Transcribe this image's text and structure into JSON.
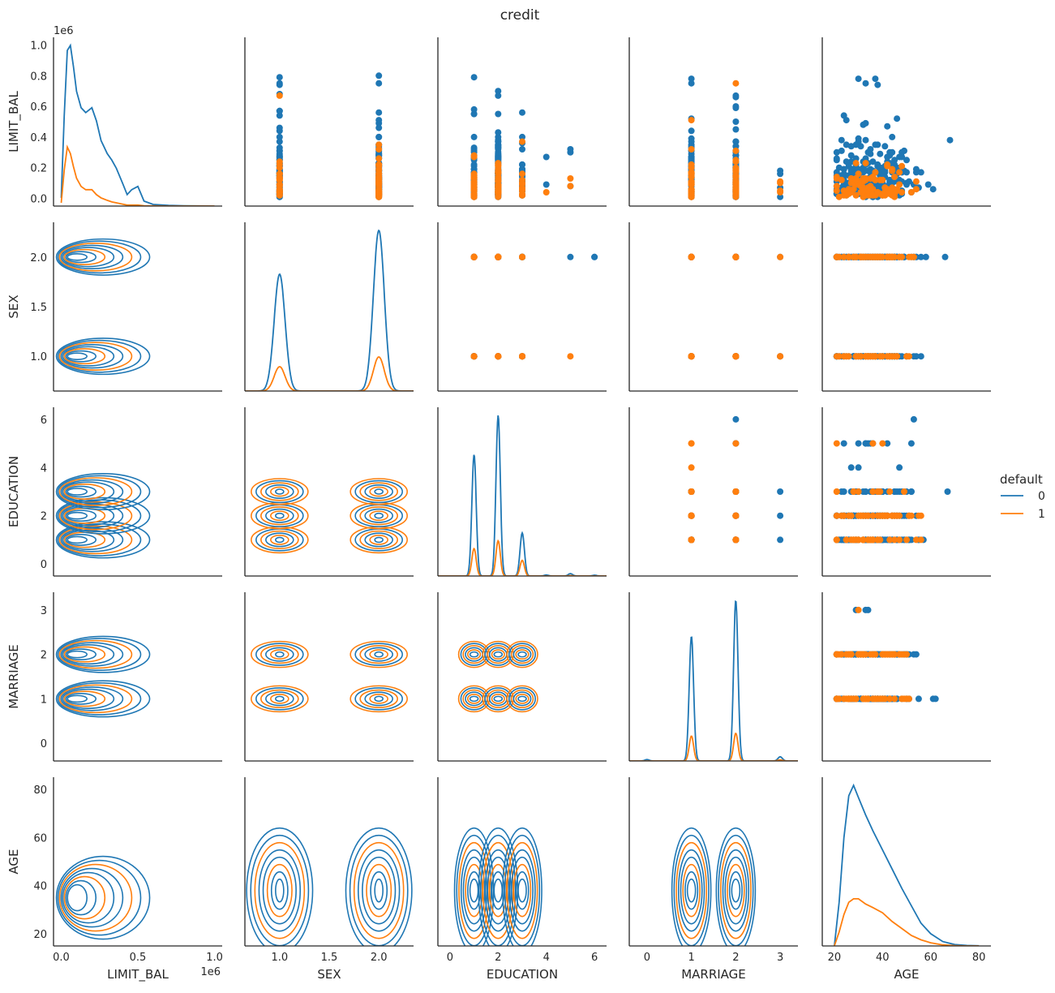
{
  "chart_data": {
    "type": "pairplot",
    "title": "credit",
    "variables": [
      "LIMIT_BAL",
      "SEX",
      "EDUCATION",
      "MARRIAGE",
      "AGE"
    ],
    "hue": {
      "name": "default",
      "levels": [
        {
          "label": "0",
          "color": "#1f77b4"
        },
        {
          "label": "1",
          "color": "#ff7f0e"
        }
      ]
    },
    "diagonal": "kde",
    "upper": "scatter",
    "lower": "kde",
    "axes": {
      "LIMIT_BAL": {
        "range": [
          -50000,
          1050000
        ],
        "ticks": [
          "0.0",
          "0.2",
          "0.4",
          "0.6",
          "0.8",
          "1.0"
        ],
        "xticks": [
          "0.0",
          "0.5",
          "1.0"
        ],
        "offset": "1e6"
      },
      "SEX": {
        "range": [
          0.65,
          2.35
        ],
        "yrange": [
          0.65,
          2.35
        ],
        "ticks": [
          "1.0",
          "1.5",
          "2.0"
        ]
      },
      "EDUCATION": {
        "range": [
          -0.5,
          6.5
        ],
        "ticks": [
          "0",
          "2",
          "4",
          "6"
        ]
      },
      "MARRIAGE": {
        "range": [
          -0.4,
          3.4
        ],
        "ticks": [
          "0",
          "1",
          "2",
          "3"
        ]
      },
      "AGE": {
        "range": [
          15,
          85
        ],
        "yticks": [
          "20",
          "40",
          "60",
          "80"
        ],
        "xticks": [
          "20",
          "40",
          "60",
          "80"
        ]
      }
    },
    "diagonal_kde": {
      "LIMIT_BAL": {
        "x": [
          0,
          20000,
          40000,
          60000,
          80000,
          100000,
          130000,
          160000,
          200000,
          230000,
          260000,
          300000,
          330000,
          360000,
          400000,
          430000,
          460000,
          500000,
          540000,
          600000,
          700000,
          800000,
          1000000
        ],
        "0": [
          0.05,
          0.55,
          0.95,
          0.98,
          0.85,
          0.7,
          0.6,
          0.57,
          0.6,
          0.52,
          0.4,
          0.32,
          0.28,
          0.23,
          0.14,
          0.07,
          0.1,
          0.12,
          0.03,
          0.01,
          0.004,
          0.002,
          0.0
        ],
        "1": [
          0.02,
          0.22,
          0.36,
          0.32,
          0.24,
          0.17,
          0.12,
          0.1,
          0.1,
          0.07,
          0.05,
          0.035,
          0.025,
          0.02,
          0.012,
          0.006,
          0.006,
          0.006,
          0.002,
          0.001,
          0.0,
          0.0,
          0.0
        ]
      },
      "SEX": {
        "peaks": [
          1,
          2
        ],
        "0": [
          0.48,
          0.66
        ],
        "1": [
          0.1,
          0.14
        ],
        "sd": 0.055
      },
      "EDUCATION": {
        "peaks": [
          1,
          2,
          3,
          4,
          5,
          6
        ],
        "0": [
          0.62,
          0.82,
          0.22,
          0.005,
          0.012,
          0.004
        ],
        "1": [
          0.14,
          0.18,
          0.08,
          0.0,
          0.002,
          0.0
        ],
        "sd": 0.09
      },
      "MARRIAGE": {
        "peaks": [
          0,
          1,
          2,
          3
        ],
        "0": [
          0.005,
          0.45,
          0.58,
          0.015
        ],
        "1": [
          0.0,
          0.09,
          0.1,
          0.004
        ],
        "sd": 0.05
      },
      "AGE": {
        "x": [
          20,
          22,
          24,
          26,
          28,
          30,
          33,
          36,
          40,
          44,
          48,
          52,
          56,
          60,
          65,
          70,
          75,
          80
        ],
        "0": [
          0.0,
          0.25,
          0.62,
          0.86,
          0.92,
          0.85,
          0.75,
          0.66,
          0.55,
          0.44,
          0.33,
          0.23,
          0.13,
          0.07,
          0.025,
          0.008,
          0.003,
          0.001
        ],
        "1": [
          0.0,
          0.08,
          0.18,
          0.25,
          0.27,
          0.27,
          0.24,
          0.22,
          0.19,
          0.14,
          0.1,
          0.06,
          0.035,
          0.018,
          0.006,
          0.002,
          0.0,
          0.0
        ]
      }
    }
  }
}
